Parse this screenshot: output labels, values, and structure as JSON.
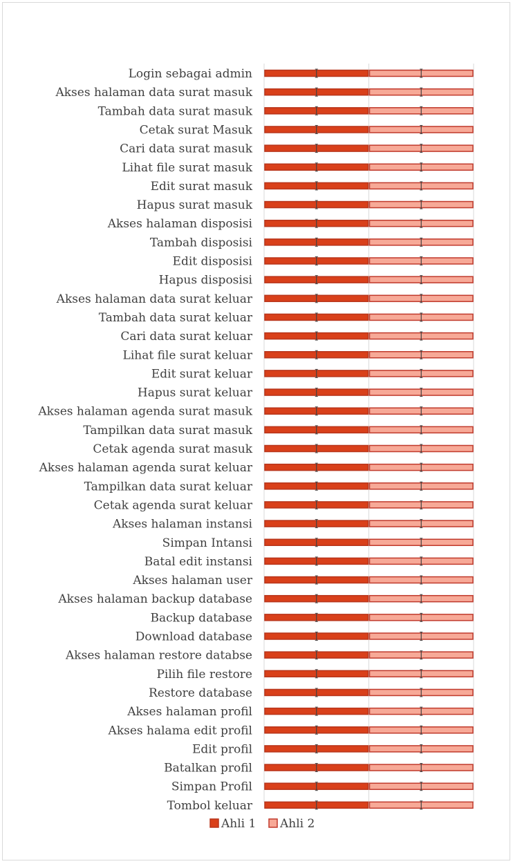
{
  "chart_data": {
    "type": "bar",
    "orientation": "horizontal",
    "stacked": "100%",
    "title": "",
    "xlabel": "",
    "ylabel": "",
    "xlim": [
      0,
      1
    ],
    "grid": true,
    "legend_position": "bottom",
    "categories": [
      "Login sebagai admin",
      "Akses halaman data surat masuk",
      "Tambah data surat masuk",
      "Cetak surat Masuk",
      "Cari data surat masuk",
      "Lihat file surat masuk",
      "Edit surat masuk",
      "Hapus surat masuk",
      "Akses halaman disposisi",
      "Tambah disposisi",
      "Edit disposisi",
      "Hapus disposisi",
      "Akses halaman data surat keluar",
      "Tambah data surat keluar",
      "Cari data surat keluar",
      "Lihat file surat keluar",
      "Edit surat keluar",
      "Hapus surat keluar",
      "Akses halaman agenda surat masuk",
      "Tampilkan data surat masuk",
      "Cetak agenda surat masuk",
      "Akses halaman agenda surat keluar",
      "Tampilkan data surat keluar",
      "Cetak agenda surat keluar",
      "Akses halaman instansi",
      "Simpan Intansi",
      "Batal edit instansi",
      "Akses halaman user",
      "Akses halaman backup database",
      "Backup database",
      "Download database",
      "Akses halaman restore databse",
      "Pilih file restore",
      "Restore database",
      "Akses halaman profil",
      "Akses halama edit profil",
      "Edit profil",
      "Batalkan profil",
      "Simpan Profil",
      "Tombol keluar"
    ],
    "series": [
      {
        "name": "Ahli 1",
        "fill": "#d9401a",
        "stroke": "#b8341a",
        "values": [
          0.5,
          0.5,
          0.5,
          0.5,
          0.5,
          0.5,
          0.5,
          0.5,
          0.5,
          0.5,
          0.5,
          0.5,
          0.5,
          0.5,
          0.5,
          0.5,
          0.5,
          0.5,
          0.5,
          0.5,
          0.5,
          0.5,
          0.5,
          0.5,
          0.5,
          0.5,
          0.5,
          0.5,
          0.5,
          0.5,
          0.5,
          0.5,
          0.5,
          0.5,
          0.5,
          0.5,
          0.5,
          0.5,
          0.5,
          0.5
        ]
      },
      {
        "name": "Ahli 2",
        "fill": "#f7a997",
        "stroke": "#c0392b",
        "values": [
          0.5,
          0.5,
          0.5,
          0.5,
          0.5,
          0.5,
          0.5,
          0.5,
          0.5,
          0.5,
          0.5,
          0.5,
          0.5,
          0.5,
          0.5,
          0.5,
          0.5,
          0.5,
          0.5,
          0.5,
          0.5,
          0.5,
          0.5,
          0.5,
          0.5,
          0.5,
          0.5,
          0.5,
          0.5,
          0.5,
          0.5,
          0.5,
          0.5,
          0.5,
          0.5,
          0.5,
          0.5,
          0.5,
          0.5,
          0.5
        ]
      }
    ],
    "error_bars": true,
    "colors": {
      "grid": "#d9d9d9",
      "text": "#404040",
      "error_bar": "#404040"
    }
  }
}
